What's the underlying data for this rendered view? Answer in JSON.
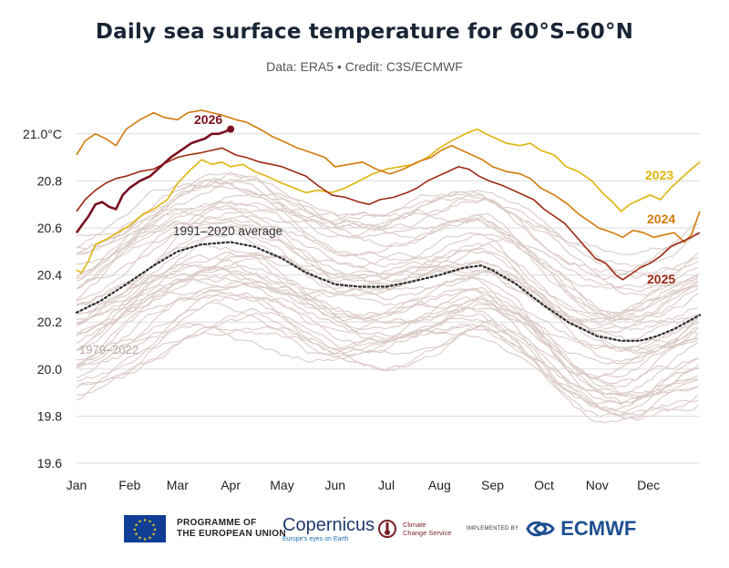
{
  "title": "Daily sea surface temperature for 60°S–60°N",
  "subtitle": "Data: ERA5 • Credit: C3S/ECMWF",
  "footer": {
    "eu_line1": "PROGRAMME OF",
    "eu_line2": "THE EUROPEAN UNION",
    "copernicus": "Copernicus",
    "copernicus_tagline": "Europe's eyes on Earth",
    "ccs_line1": "Climate",
    "ccs_line2": "Change Service",
    "implemented_by": "IMPLEMENTED BY",
    "ecmwf": "ECMWF"
  },
  "chart_data": {
    "type": "line",
    "x_tick_labels": [
      "Jan",
      "Feb",
      "Mar",
      "Apr",
      "May",
      "Jun",
      "Jul",
      "Aug",
      "Sep",
      "Oct",
      "Nov",
      "Dec"
    ],
    "x_range_days": [
      1,
      365
    ],
    "y_tick_labels": [
      "19.6",
      "19.8",
      "20.0",
      "20.2",
      "20.4",
      "20.6",
      "20.8",
      "21.0°C"
    ],
    "ylim": [
      19.6,
      21.1
    ],
    "grid": "horizontal",
    "colors": {
      "y2026": "#7a1020",
      "y2025": "#9c2a12",
      "y2024": "#d27a0a",
      "y2023": "#e0b40c",
      "average": "#2b2b2b",
      "background_years": "#dccbc7"
    },
    "labels": {
      "y2026": "2026",
      "y2025": "2025",
      "y2024": "2024",
      "y2023": "2023",
      "average": "1991–2020 average",
      "background_years": "1979–2022"
    },
    "series": [
      {
        "name": "1991–2020 average",
        "style": "dotted",
        "color": "#2b2b2b",
        "points": [
          [
            1,
            20.24
          ],
          [
            15,
            20.29
          ],
          [
            32,
            20.37
          ],
          [
            46,
            20.44
          ],
          [
            60,
            20.5
          ],
          [
            74,
            20.53
          ],
          [
            91,
            20.54
          ],
          [
            105,
            20.52
          ],
          [
            121,
            20.47
          ],
          [
            135,
            20.41
          ],
          [
            152,
            20.36
          ],
          [
            166,
            20.35
          ],
          [
            182,
            20.35
          ],
          [
            196,
            20.37
          ],
          [
            213,
            20.4
          ],
          [
            227,
            20.43
          ],
          [
            237,
            20.44
          ],
          [
            244,
            20.42
          ],
          [
            258,
            20.36
          ],
          [
            274,
            20.27
          ],
          [
            288,
            20.2
          ],
          [
            305,
            20.14
          ],
          [
            319,
            20.12
          ],
          [
            330,
            20.12
          ],
          [
            340,
            20.14
          ],
          [
            350,
            20.17
          ],
          [
            365,
            20.23
          ]
        ]
      },
      {
        "name": "2023",
        "color": "#e0b40c",
        "points": [
          [
            1,
            20.42
          ],
          [
            4,
            20.41
          ],
          [
            8,
            20.46
          ],
          [
            12,
            20.53
          ],
          [
            18,
            20.55
          ],
          [
            25,
            20.58
          ],
          [
            32,
            20.61
          ],
          [
            40,
            20.66
          ],
          [
            46,
            20.68
          ],
          [
            54,
            20.72
          ],
          [
            60,
            20.79
          ],
          [
            68,
            20.85
          ],
          [
            74,
            20.89
          ],
          [
            80,
            20.87
          ],
          [
            86,
            20.88
          ],
          [
            91,
            20.86
          ],
          [
            98,
            20.87
          ],
          [
            105,
            20.84
          ],
          [
            112,
            20.82
          ],
          [
            121,
            20.79
          ],
          [
            128,
            20.77
          ],
          [
            135,
            20.75
          ],
          [
            142,
            20.76
          ],
          [
            150,
            20.75
          ],
          [
            158,
            20.77
          ],
          [
            166,
            20.8
          ],
          [
            174,
            20.83
          ],
          [
            182,
            20.85
          ],
          [
            190,
            20.86
          ],
          [
            198,
            20.87
          ],
          [
            206,
            20.9
          ],
          [
            213,
            20.94
          ],
          [
            220,
            20.97
          ],
          [
            228,
            21.0
          ],
          [
            235,
            21.02
          ],
          [
            240,
            21.0
          ],
          [
            246,
            20.98
          ],
          [
            252,
            20.96
          ],
          [
            260,
            20.95
          ],
          [
            266,
            20.96
          ],
          [
            272,
            20.93
          ],
          [
            280,
            20.91
          ],
          [
            287,
            20.86
          ],
          [
            294,
            20.84
          ],
          [
            302,
            20.8
          ],
          [
            308,
            20.75
          ],
          [
            314,
            20.71
          ],
          [
            319,
            20.67
          ],
          [
            324,
            20.7
          ],
          [
            330,
            20.72
          ],
          [
            336,
            20.74
          ],
          [
            342,
            20.72
          ],
          [
            348,
            20.77
          ],
          [
            354,
            20.81
          ],
          [
            360,
            20.85
          ],
          [
            365,
            20.88
          ]
        ]
      },
      {
        "name": "2024",
        "color": "#d27a0a",
        "points": [
          [
            1,
            20.91
          ],
          [
            6,
            20.97
          ],
          [
            12,
            21.0
          ],
          [
            18,
            20.98
          ],
          [
            24,
            20.95
          ],
          [
            30,
            21.02
          ],
          [
            38,
            21.06
          ],
          [
            46,
            21.09
          ],
          [
            52,
            21.07
          ],
          [
            60,
            21.06
          ],
          [
            66,
            21.09
          ],
          [
            74,
            21.1
          ],
          [
            80,
            21.09
          ],
          [
            86,
            21.08
          ],
          [
            94,
            21.06
          ],
          [
            100,
            21.05
          ],
          [
            108,
            21.02
          ],
          [
            115,
            20.99
          ],
          [
            121,
            20.97
          ],
          [
            130,
            20.94
          ],
          [
            138,
            20.92
          ],
          [
            146,
            20.9
          ],
          [
            152,
            20.86
          ],
          [
            160,
            20.87
          ],
          [
            168,
            20.88
          ],
          [
            176,
            20.85
          ],
          [
            184,
            20.83
          ],
          [
            192,
            20.85
          ],
          [
            200,
            20.88
          ],
          [
            208,
            20.9
          ],
          [
            214,
            20.93
          ],
          [
            220,
            20.95
          ],
          [
            226,
            20.93
          ],
          [
            232,
            20.91
          ],
          [
            238,
            20.89
          ],
          [
            244,
            20.86
          ],
          [
            252,
            20.84
          ],
          [
            260,
            20.83
          ],
          [
            266,
            20.81
          ],
          [
            272,
            20.77
          ],
          [
            280,
            20.74
          ],
          [
            288,
            20.7
          ],
          [
            294,
            20.66
          ],
          [
            300,
            20.63
          ],
          [
            306,
            20.6
          ],
          [
            314,
            20.58
          ],
          [
            320,
            20.56
          ],
          [
            326,
            20.59
          ],
          [
            332,
            20.58
          ],
          [
            338,
            20.56
          ],
          [
            344,
            20.57
          ],
          [
            350,
            20.58
          ],
          [
            356,
            20.54
          ],
          [
            360,
            20.57
          ],
          [
            365,
            20.67
          ]
        ]
      },
      {
        "name": "2025",
        "color": "#9c2a12",
        "points": [
          [
            1,
            20.67
          ],
          [
            6,
            20.72
          ],
          [
            12,
            20.76
          ],
          [
            18,
            20.79
          ],
          [
            24,
            20.81
          ],
          [
            30,
            20.82
          ],
          [
            38,
            20.84
          ],
          [
            46,
            20.85
          ],
          [
            54,
            20.88
          ],
          [
            60,
            20.9
          ],
          [
            66,
            20.91
          ],
          [
            74,
            20.92
          ],
          [
            80,
            20.93
          ],
          [
            86,
            20.94
          ],
          [
            94,
            20.91
          ],
          [
            100,
            20.9
          ],
          [
            108,
            20.88
          ],
          [
            115,
            20.87
          ],
          [
            121,
            20.86
          ],
          [
            128,
            20.84
          ],
          [
            135,
            20.82
          ],
          [
            142,
            20.78
          ],
          [
            150,
            20.74
          ],
          [
            158,
            20.73
          ],
          [
            166,
            20.71
          ],
          [
            172,
            20.7
          ],
          [
            178,
            20.72
          ],
          [
            186,
            20.73
          ],
          [
            194,
            20.75
          ],
          [
            200,
            20.77
          ],
          [
            206,
            20.8
          ],
          [
            212,
            20.82
          ],
          [
            218,
            20.84
          ],
          [
            224,
            20.86
          ],
          [
            230,
            20.85
          ],
          [
            236,
            20.82
          ],
          [
            242,
            20.8
          ],
          [
            250,
            20.78
          ],
          [
            256,
            20.76
          ],
          [
            262,
            20.74
          ],
          [
            268,
            20.72
          ],
          [
            274,
            20.68
          ],
          [
            280,
            20.65
          ],
          [
            286,
            20.62
          ],
          [
            292,
            20.57
          ],
          [
            298,
            20.52
          ],
          [
            304,
            20.47
          ],
          [
            310,
            20.45
          ],
          [
            316,
            20.4
          ],
          [
            320,
            20.38
          ],
          [
            324,
            20.4
          ],
          [
            330,
            20.43
          ],
          [
            336,
            20.45
          ],
          [
            342,
            20.48
          ],
          [
            348,
            20.52
          ],
          [
            354,
            20.54
          ],
          [
            360,
            20.56
          ],
          [
            365,
            20.58
          ]
        ]
      },
      {
        "name": "2026",
        "color": "#7a1020",
        "points": [
          [
            1,
            20.58
          ],
          [
            4,
            20.61
          ],
          [
            8,
            20.65
          ],
          [
            12,
            20.7
          ],
          [
            16,
            20.71
          ],
          [
            20,
            20.69
          ],
          [
            24,
            20.68
          ],
          [
            28,
            20.74
          ],
          [
            32,
            20.77
          ],
          [
            38,
            20.8
          ],
          [
            44,
            20.82
          ],
          [
            50,
            20.86
          ],
          [
            56,
            20.9
          ],
          [
            60,
            20.92
          ],
          [
            64,
            20.94
          ],
          [
            68,
            20.96
          ],
          [
            72,
            20.97
          ],
          [
            76,
            20.98
          ],
          [
            80,
            21.0
          ],
          [
            84,
            21.0
          ],
          [
            88,
            21.01
          ],
          [
            91,
            21.02
          ]
        ]
      }
    ],
    "background_series_count": 44
  }
}
